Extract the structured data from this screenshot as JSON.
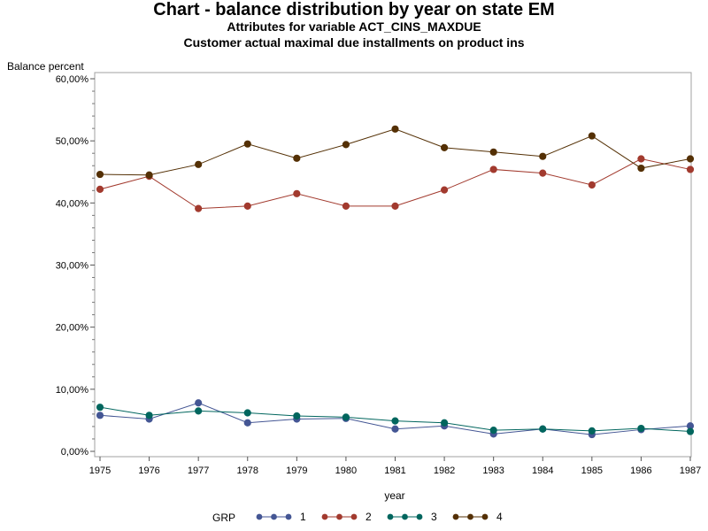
{
  "chart_data": {
    "type": "line",
    "title": "Chart - balance distribution by year on state EM",
    "subtitle_lines": [
      "Attributes for variable ACT_CINS_MAXDUE",
      "Customer actual maximal due installments on product ins"
    ],
    "xlabel": "year",
    "ylabel": "Balance percent",
    "x": [
      1975,
      1976,
      1977,
      1978,
      1979,
      1980,
      1981,
      1982,
      1983,
      1984,
      1985,
      1986,
      1987
    ],
    "ylim": [
      0,
      60
    ],
    "yticks": [
      0,
      10,
      20,
      30,
      40,
      50,
      60
    ],
    "ytick_labels": [
      "0,00%",
      "10,00%",
      "20,00%",
      "30,00%",
      "40,00%",
      "50,00%",
      "60,00%"
    ],
    "grid": false,
    "legend": {
      "title": "GRP",
      "placement": "bottom"
    },
    "series": [
      {
        "name": "1",
        "color": "#445694",
        "values": [
          5.8,
          5.2,
          7.8,
          4.6,
          5.2,
          5.3,
          3.6,
          4.1,
          2.8,
          3.6,
          2.7,
          3.5,
          4.1
        ]
      },
      {
        "name": "2",
        "color": "#A23A2E",
        "values": [
          42.2,
          44.3,
          39.1,
          39.5,
          41.5,
          39.5,
          39.5,
          42.1,
          45.4,
          44.8,
          42.9,
          47.1,
          45.4
        ]
      },
      {
        "name": "3",
        "color": "#01665E",
        "values": [
          7.1,
          5.8,
          6.5,
          6.2,
          5.7,
          5.5,
          4.9,
          4.6,
          3.4,
          3.6,
          3.3,
          3.7,
          3.2
        ]
      },
      {
        "name": "4",
        "color": "#543005",
        "values": [
          44.6,
          44.5,
          46.2,
          49.5,
          47.2,
          49.4,
          51.9,
          48.9,
          48.2,
          47.5,
          50.8,
          45.6,
          47.1
        ]
      }
    ]
  }
}
